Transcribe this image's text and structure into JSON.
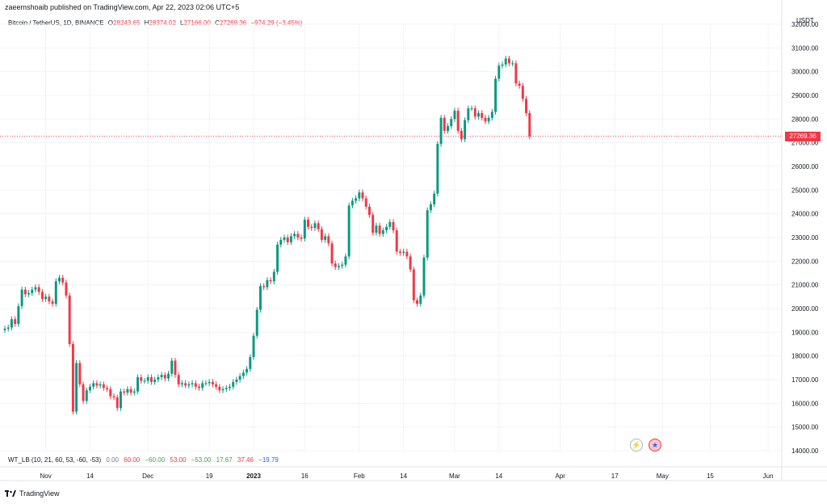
{
  "header": {
    "published": "zaeemshoaib published on TradingView.com, Apr 22, 2023 02:06 UTC+5"
  },
  "legend": {
    "symbol": "Bitcoin / TetherUS, 1D, BINANCE",
    "o_label": "O",
    "o": "28243.65",
    "h_label": "H",
    "h": "28374.02",
    "l_label": "L",
    "l": "27166.00",
    "c_label": "C",
    "c": "27269.36",
    "change": "−974.29 (−3.45%)"
  },
  "axis_unit": "USDT",
  "last_price": "27269.36",
  "indicator": {
    "name": "WT_LB (10, 21, 60, 53, -60, -53)",
    "values": [
      {
        "text": "0.00",
        "tone": "gray"
      },
      {
        "text": "60.00",
        "tone": "r"
      },
      {
        "text": "−60.00",
        "tone": "g"
      },
      {
        "text": "53.00",
        "tone": "r"
      },
      {
        "text": "−53.00",
        "tone": "g"
      },
      {
        "text": "17.67",
        "tone": "g"
      },
      {
        "text": "37.46",
        "tone": "r"
      },
      {
        "text": "−19.79",
        "tone": "b"
      }
    ]
  },
  "brand": "TradingView",
  "colors": {
    "up": "#089981",
    "down": "#f23645",
    "grid": "#f0f3fa",
    "axis_text": "#131722"
  },
  "chart_data": {
    "type": "candlestick",
    "y_ticks": [
      14000,
      15000,
      16000,
      17000,
      18000,
      19000,
      20000,
      21000,
      22000,
      23000,
      24000,
      25000,
      26000,
      27000,
      28000,
      29000,
      30000,
      31000,
      32000
    ],
    "ylim": [
      14000,
      32000
    ],
    "x_tick_labels": [
      "Nov",
      "14",
      "Dec",
      "19",
      "2023",
      "16",
      "Feb",
      "14",
      "Mar",
      "14",
      "Apr",
      "17",
      "May",
      "15",
      "Jun"
    ],
    "x_tick_dates": [
      "2022-11-01",
      "2022-11-14",
      "2022-12-01",
      "2022-12-19",
      "2023-01-01",
      "2023-01-16",
      "2023-02-01",
      "2023-02-14",
      "2023-03-01",
      "2023-03-14",
      "2023-04-01",
      "2023-04-17",
      "2023-05-01",
      "2023-05-15",
      "2023-06-01"
    ],
    "xlim": [
      "2022-10-20",
      "2023-06-05"
    ],
    "last_price": 27269.36,
    "candles_close": {
      "start": "2022-10-20",
      "values": [
        19150,
        19200,
        19550,
        19350,
        20100,
        20800,
        20600,
        20650,
        20800,
        20900,
        20700,
        20400,
        20500,
        20300,
        20200,
        21150,
        21300,
        21100,
        20550,
        18500,
        15650,
        17700,
        16800,
        16100,
        16550,
        16700,
        16850,
        16750,
        16800,
        16650,
        16600,
        16300,
        16250,
        15800,
        16500,
        16450,
        16600,
        16450,
        16500,
        17100,
        16950,
        16950,
        17100,
        16900,
        17000,
        17100,
        17200,
        17050,
        17250,
        17800,
        17200,
        16800,
        16850,
        16750,
        16800,
        16850,
        16700,
        16650,
        16850,
        16850,
        16900,
        16800,
        16700,
        16550,
        16600,
        16650,
        16700,
        16900,
        17000,
        17150,
        17300,
        17450,
        17950,
        18850,
        19950,
        20950,
        20900,
        21200,
        21150,
        21550,
        22700,
        22900,
        23000,
        22800,
        23050,
        23150,
        23000,
        22950,
        23750,
        23450,
        23400,
        23600,
        23350,
        22900,
        23050,
        22750,
        21900,
        21750,
        21800,
        21850,
        22200,
        24350,
        24550,
        24650,
        24900,
        24650,
        24300,
        23950,
        23200,
        23500,
        23150,
        23300,
        23450,
        23650,
        23300,
        22400,
        22350,
        22400,
        22200,
        21650,
        20350,
        20200,
        20550,
        22150,
        24150,
        24400,
        24850,
        26950,
        28050,
        27500,
        27700,
        28000,
        28350,
        27500,
        27150,
        27950,
        28450,
        28450,
        28100,
        28250,
        28050,
        27900,
        28050,
        28300,
        29700,
        30250,
        30300,
        30550,
        30350,
        30350,
        29500,
        29400,
        28850,
        28250,
        27270
      ]
    }
  }
}
